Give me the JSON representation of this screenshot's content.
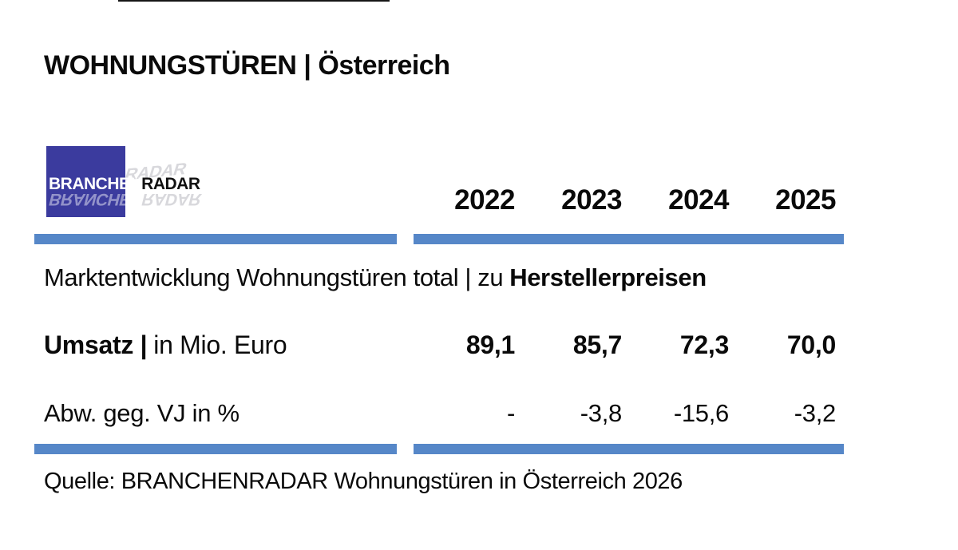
{
  "header": {
    "title": "WOHNUNGSTÜREN | Österreich"
  },
  "logo": {
    "part1": "BRANCHEN",
    "part2": "RADAR",
    "square_color": "#3b3b9e"
  },
  "accent_color": "#5687c8",
  "table": {
    "years": [
      "2022",
      "2023",
      "2024",
      "2025"
    ],
    "subtitle_regular": "Marktentwicklung Wohnungstüren total | zu",
    "subtitle_bold": "Herstellerpreisen",
    "row1": {
      "label_bold": "Umsatz |",
      "label_regular": "in Mio. Euro",
      "values": [
        "89,1",
        "85,7",
        "72,3",
        "70,0"
      ]
    },
    "row2": {
      "label": "Abw. geg. VJ in %",
      "values": [
        "-",
        "-3,8",
        "-15,6",
        "-3,2"
      ]
    }
  },
  "footer": {
    "source": "Quelle: BRANCHENRADAR Wohnungstüren in Österreich 2026"
  },
  "chart_data": {
    "type": "table",
    "title": "WOHNUNGSTÜREN | Österreich — Marktentwicklung Wohnungstüren total zu Herstellerpreisen",
    "categories": [
      2022,
      2023,
      2024,
      2025
    ],
    "series": [
      {
        "name": "Umsatz | in Mio. Euro",
        "values": [
          89.1,
          85.7,
          72.3,
          70.0
        ]
      },
      {
        "name": "Abw. geg. VJ in %",
        "values": [
          null,
          -3.8,
          -15.6,
          -3.2
        ]
      }
    ],
    "source": "Quelle: BRANCHENRADAR Wohnungstüren in Österreich 2026"
  }
}
